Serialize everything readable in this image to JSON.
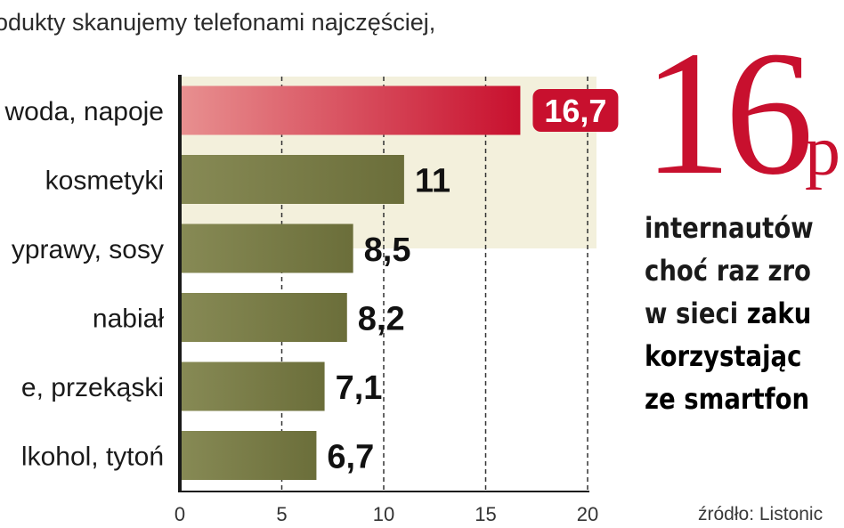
{
  "subtitle": "odukty skanujemy telefonami najczęściej,",
  "chart_data": {
    "type": "bar",
    "orientation": "horizontal",
    "categories": [
      "woda, napoje",
      "kosmetyki",
      "yprawy, sosy",
      "nabiał",
      "e, przekąski",
      "lkohol, tytoń"
    ],
    "values": [
      16.7,
      11,
      8.5,
      8.2,
      7.1,
      6.7
    ],
    "value_labels": [
      "16,7",
      "11",
      "8,5",
      "8,2",
      "7,1",
      "6,7"
    ],
    "xlim": [
      0,
      20
    ],
    "xticks": [
      0,
      5,
      10,
      15,
      20
    ],
    "grid": "vertical dotted",
    "highlight_index": 0,
    "colors": {
      "highlight": "#c8102e",
      "bar": "#6b6e3a",
      "band": "#f3f0dc",
      "axis": "#1a1a1a"
    }
  },
  "side_panel": {
    "big_number": "16",
    "big_unit": "p",
    "lines": [
      {
        "text": "internautów",
        "strong": ""
      },
      {
        "text": "choć raz zro",
        "strong": ""
      },
      {
        "text": "w sieci ",
        "strong": "zaku"
      },
      {
        "text": "",
        "strong": "korzystając"
      },
      {
        "text": "",
        "strong": "ze smartfon"
      }
    ],
    "source": "źródło: Listonic"
  }
}
